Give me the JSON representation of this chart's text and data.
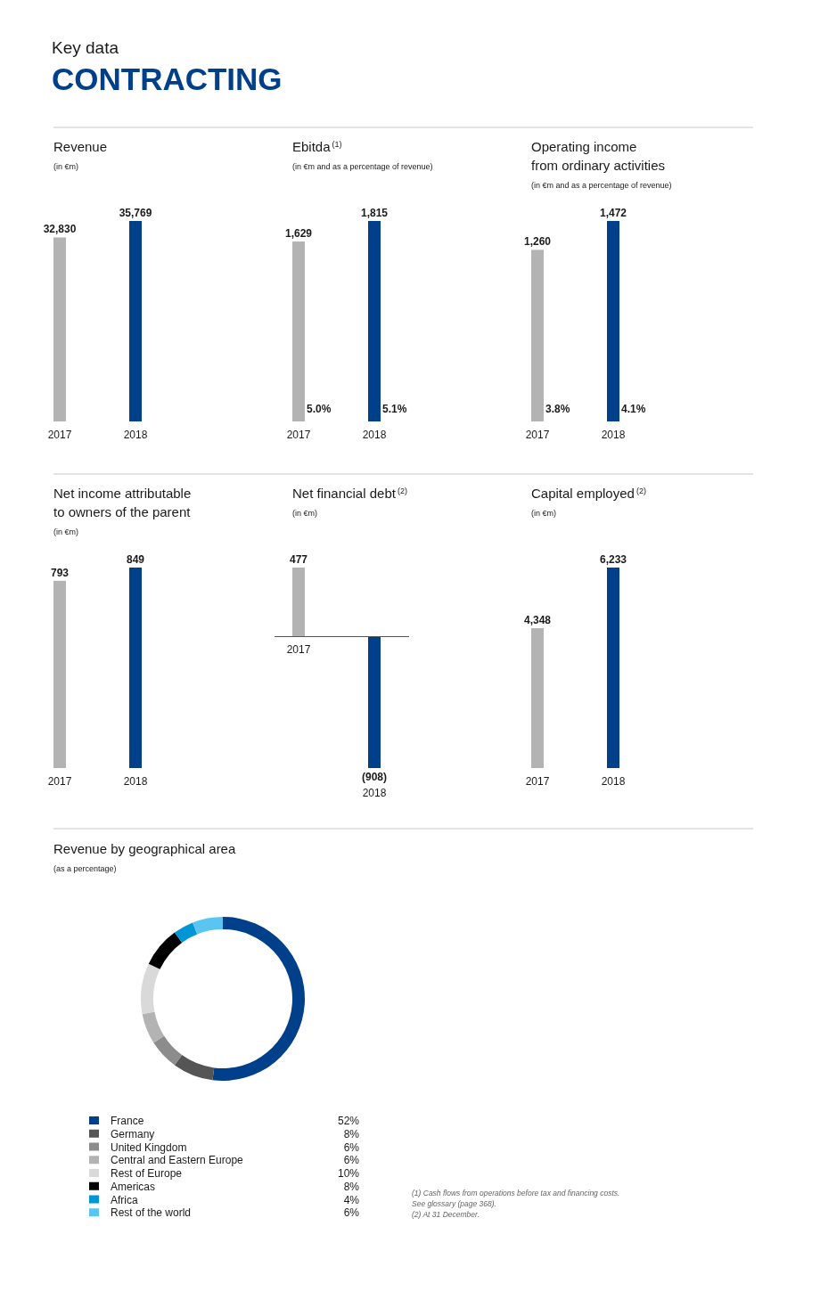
{
  "chart_data": [
    {
      "type": "other",
      "annotations": [
        "Key data",
        "CONTRACTING"
      ]
    },
    {
      "type": "bar",
      "title": "Revenue",
      "subtitle": "(in €m)",
      "categories": [
        "2017",
        "2018"
      ],
      "values": [
        32830,
        35769
      ],
      "colors": [
        "#b3b3b3",
        "#003f8a"
      ],
      "value_labels": [
        "32,830",
        "35,769"
      ]
    },
    {
      "type": "bar",
      "title": "Ebitda$^{(1)}$",
      "subtitle": "(in €m and as a percentage of revenue)",
      "categories": [
        "2017",
        "2018"
      ],
      "values": [
        1629,
        1815
      ],
      "colors": [
        "#b3b3b3",
        "#003f8a"
      ],
      "value_labels": [
        "1,629",
        "1,815"
      ],
      "annotations": [
        "5.0%",
        "5.1%"
      ]
    },
    {
      "type": "bar",
      "title": "Operating income\nfrom ordinary activities",
      "subtitle": "(in €m and as a percentage of revenue)",
      "categories": [
        "2017",
        "2018"
      ],
      "values": [
        1260,
        1472
      ],
      "colors": [
        "#b3b3b3",
        "#003f8a"
      ],
      "value_labels": [
        "1,260",
        "1,472"
      ],
      "annotations": [
        "3.8%",
        "4.1%"
      ]
    },
    {
      "type": "bar",
      "title": "Net income attributable\nto owners of the parent",
      "subtitle": "(in €m)",
      "categories": [
        "2017",
        "2018"
      ],
      "values": [
        793,
        849
      ],
      "colors": [
        "#b3b3b3",
        "#003f8a"
      ],
      "value_labels": [
        "793",
        "849"
      ]
    },
    {
      "type": "bar",
      "title": "Net financial debt$^{(2)}$",
      "subtitle": "(in €m)",
      "categories": [
        "2017",
        "2018"
      ],
      "values": [
        477,
        -908
      ],
      "colors": [
        "#b3b3b3",
        "#003f8a"
      ],
      "value_labels": [
        "477",
        "(908)"
      ]
    },
    {
      "type": "bar",
      "title": "Capital employed$^{(2)}$",
      "subtitle": "(in €m)",
      "categories": [
        "2017",
        "2018"
      ],
      "values": [
        4348,
        6233
      ],
      "colors": [
        "#b3b3b3",
        "#003f8a"
      ],
      "value_labels": [
        "4,348",
        "6,233"
      ]
    },
    {
      "type": "donut",
      "title": "Revenue by geographical area",
      "subtitle": "(as a percentage)",
      "categories": [
        "France",
        "Germany",
        "United Kingdom",
        "Central and Eastern Europe",
        "Rest of Europe",
        "Americas",
        "Africa",
        "Rest of the world"
      ],
      "values": [
        52,
        8,
        6,
        6,
        10,
        8,
        4,
        6
      ],
      "colors": [
        "#003f8a",
        "#555555",
        "#8c8c8c",
        "#b3b3b3",
        "#d9d9d9",
        "#000000",
        "#0096d6",
        "#5bc5f2"
      ],
      "value_labels": [
        "52%",
        "8%",
        "6%",
        "6%",
        "10%",
        "8%",
        "4%",
        "6%"
      ],
      "legend": "bottom",
      "annotations": [
        "(1) Cash flows from operations before tax and financing costs.\nSee glossary (page 368).",
        "(2) At 31 December."
      ]
    }
  ]
}
